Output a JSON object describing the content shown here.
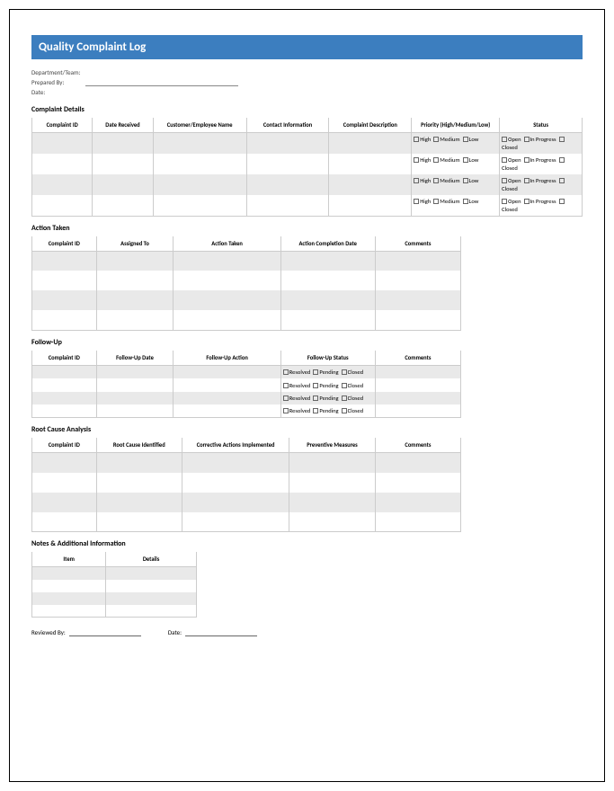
{
  "title": "Quality Complaint Log",
  "meta": {
    "department_label": "Department/Team:",
    "prepared_label": "Prepared By:",
    "date_label": "Date:"
  },
  "sections": {
    "complaint_details": {
      "title": "Complaint Details",
      "headers": [
        "Complaint ID",
        "Date Received",
        "Customer/Employee Name",
        "Contact Information",
        "Complaint Description",
        "Priority (High/Medium/Low)",
        "Status"
      ],
      "priority_options": [
        "High",
        "Medium",
        "Low"
      ],
      "status_options": [
        "Open",
        "In Progress",
        "Closed"
      ],
      "row_count": 4
    },
    "action_taken": {
      "title": "Action Taken",
      "headers": [
        "Complaint ID",
        "Assigned To",
        "Action Taken",
        "Action Completion Date",
        "Comments"
      ],
      "row_count": 4
    },
    "follow_up": {
      "title": "Follow-Up",
      "headers": [
        "Complaint ID",
        "Follow-Up Date",
        "Follow-Up Action",
        "Follow-Up Status",
        "Comments"
      ],
      "status_options": [
        "Resolved",
        "Pending",
        "Closed"
      ],
      "row_count": 4
    },
    "root_cause": {
      "title": "Root Cause Analysis",
      "headers": [
        "Complaint ID",
        "Root Cause Identified",
        "Corrective Actions Implemented",
        "Preventive Measures",
        "Comments"
      ],
      "row_count": 4
    },
    "notes": {
      "title": "Notes & Additional Information",
      "headers": [
        "Item",
        "Details"
      ],
      "row_count": 4
    }
  },
  "footer": {
    "reviewed_label": "Reviewed By:",
    "date_label": "Date:"
  },
  "colors": {
    "header_bg": "#3c7ebf",
    "shade_bg": "#e9e9e9",
    "border": "#cccccc"
  }
}
